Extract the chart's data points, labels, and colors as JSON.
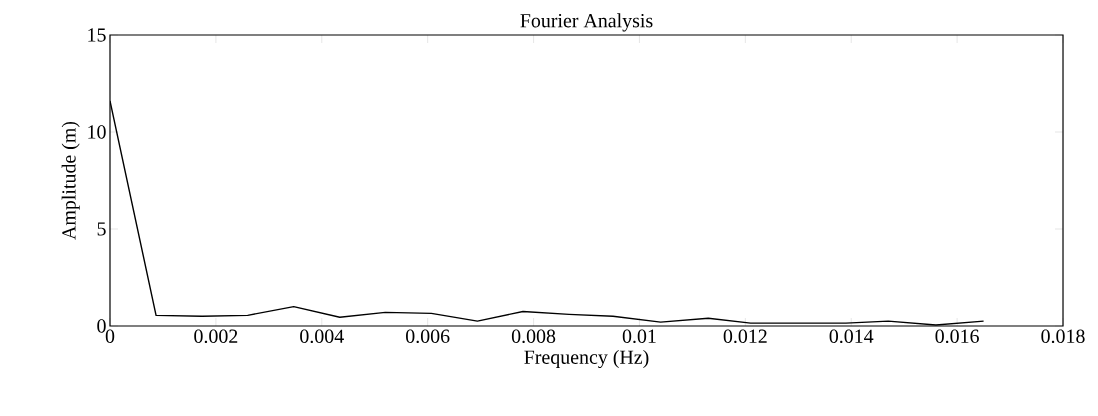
{
  "chart_data": {
    "type": "line",
    "title": "Fourier Analysis",
    "xlabel": "Frequency (Hz)",
    "ylabel": "Amplitude (m)",
    "x": [
      0,
      0.00087,
      0.00174,
      0.0026,
      0.00347,
      0.00434,
      0.0052,
      0.00607,
      0.00694,
      0.0078,
      0.00867,
      0.0095,
      0.0104,
      0.0113,
      0.0121,
      0.013,
      0.0139,
      0.0147,
      0.0156,
      0.0165
    ],
    "series": [
      {
        "color": "#000000",
        "values": [
          11.6,
          0.55,
          0.5,
          0.55,
          1.0,
          0.45,
          0.7,
          0.65,
          0.25,
          0.75,
          0.6,
          0.5,
          0.2,
          0.4,
          0.15,
          0.15,
          0.15,
          0.25,
          0.05,
          0.25
        ]
      }
    ],
    "xlim": [
      0,
      0.018
    ],
    "ylim": [
      0,
      15
    ],
    "xticks": [
      0,
      0.002,
      0.004,
      0.006,
      0.008,
      0.01,
      0.012,
      0.014,
      0.016,
      0.018
    ],
    "yticks": [
      0,
      5,
      10,
      15
    ],
    "grid": false,
    "marker": "none",
    "line_style": "solid"
  }
}
